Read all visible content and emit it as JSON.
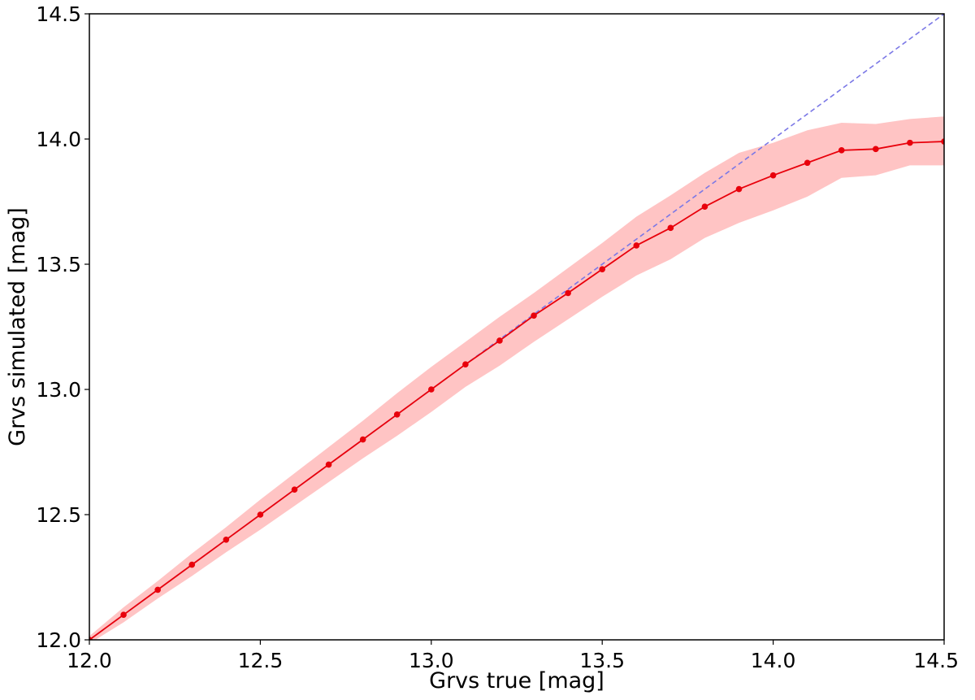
{
  "chart_data": {
    "type": "line",
    "xlabel": "Grvs true [mag]",
    "ylabel": "Grvs simulated [mag]",
    "xlim": [
      12.0,
      14.5
    ],
    "ylim": [
      12.0,
      14.5
    ],
    "grid": false,
    "x_ticks": [
      "12.0",
      "12.5",
      "13.0",
      "13.5",
      "14.0",
      "14.5"
    ],
    "y_ticks": [
      "12.0",
      "12.5",
      "13.0",
      "13.5",
      "14.0",
      "14.5"
    ],
    "colors": {
      "series": "#e8000b",
      "band": "#ffc4c4",
      "reference": "#7b78e6",
      "axes": "#000000"
    },
    "reference_line": {
      "style": "dashed",
      "x": [
        12.0,
        14.5
      ],
      "y": [
        12.0,
        14.5
      ]
    },
    "series": [
      {
        "x": [
          12.0,
          12.1,
          12.2,
          12.3,
          12.4,
          12.5,
          12.6,
          12.7,
          12.8,
          12.9,
          13.0,
          13.1,
          13.2,
          13.3,
          13.4,
          13.5,
          13.6,
          13.7,
          13.8,
          13.9,
          14.0,
          14.1,
          14.2,
          14.3,
          14.4,
          14.5
        ],
        "y": [
          12.0,
          12.1,
          12.2,
          12.3,
          12.4,
          12.5,
          12.6,
          12.7,
          12.8,
          12.9,
          13.0,
          13.1,
          13.195,
          13.295,
          13.385,
          13.48,
          13.575,
          13.645,
          13.73,
          13.8,
          13.855,
          13.905,
          13.955,
          13.96,
          13.985,
          13.99
        ],
        "upper": [
          12.015,
          12.13,
          12.235,
          12.345,
          12.45,
          12.56,
          12.665,
          12.77,
          12.875,
          12.985,
          13.09,
          13.19,
          13.29,
          13.385,
          13.485,
          13.585,
          13.69,
          13.775,
          13.865,
          13.945,
          13.985,
          14.035,
          14.065,
          14.06,
          14.08,
          14.09
        ],
        "lower": [
          11.985,
          12.07,
          12.165,
          12.255,
          12.35,
          12.44,
          12.535,
          12.63,
          12.725,
          12.815,
          12.91,
          13.01,
          13.095,
          13.19,
          13.28,
          13.37,
          13.455,
          13.52,
          13.605,
          13.665,
          13.715,
          13.77,
          13.845,
          13.855,
          13.895,
          13.895
        ]
      }
    ]
  }
}
